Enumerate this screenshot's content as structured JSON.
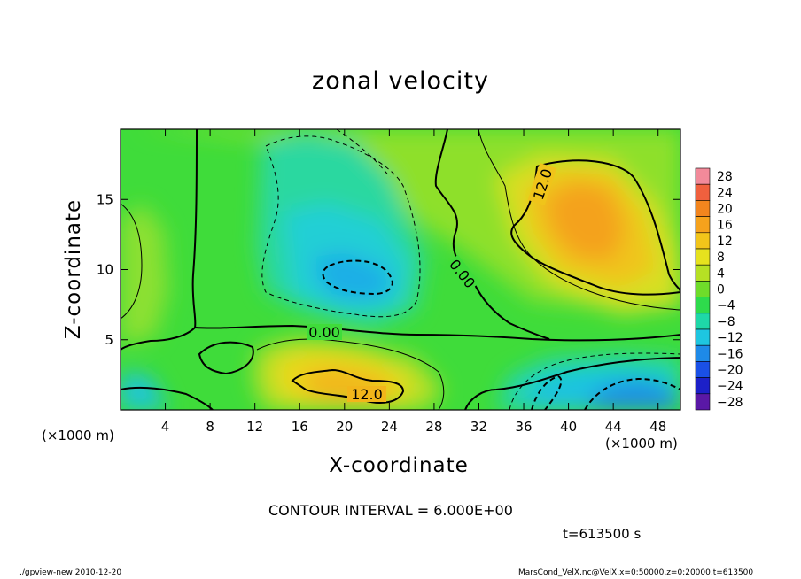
{
  "chart_data": {
    "type": "heatmap",
    "title": "zonal velocity",
    "xlabel": "X-coordinate",
    "ylabel": "Z-coordinate",
    "x_unit": "(×1000 m)",
    "xlim": [
      0,
      50
    ],
    "ylim": [
      0,
      20
    ],
    "x_ticks": [
      4,
      8,
      12,
      16,
      20,
      24,
      28,
      32,
      36,
      40,
      44,
      48
    ],
    "y_ticks": [
      5,
      10,
      15
    ],
    "colorbar": {
      "levels": [
        28,
        24,
        20,
        16,
        12,
        8,
        4,
        0,
        -4,
        -8,
        -12,
        -16,
        -20,
        -24,
        -28
      ],
      "colors": [
        "#f28a9a",
        "#f0603e",
        "#f2851e",
        "#f6a21c",
        "#f2c51a",
        "#e6e21e",
        "#b6e024",
        "#6fdc2a",
        "#2edb4c",
        "#1ed8a8",
        "#1ec6e0",
        "#1e8ae8",
        "#1a50e6",
        "#1c20c8",
        "#5a18a6"
      ]
    },
    "contour_labels": [
      "12.0",
      "0.00",
      "0.00",
      "12.0"
    ],
    "features": [
      {
        "x": 42,
        "z": 13.5,
        "value": 17
      },
      {
        "x": 20.5,
        "z": 2.2,
        "value": 15
      },
      {
        "x": 20.5,
        "z": 9.5,
        "value": -11
      },
      {
        "x": 45,
        "z": 1.2,
        "value": -15
      },
      {
        "x": 39,
        "z": 1.5,
        "value": -10
      },
      {
        "x": 1,
        "z": 1.0,
        "value": -8
      }
    ]
  },
  "contour_interval": "CONTOUR INTERVAL = 6.000E+00",
  "time": "t=613500 s",
  "footer_left": "./gpview-new   2010-12-20",
  "footer_right": "MarsCond_VelX.nc@VelX,x=0:50000,z=0:20000,t=613500"
}
